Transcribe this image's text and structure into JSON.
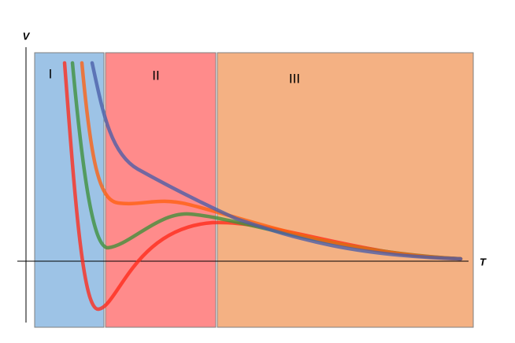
{
  "axes": {
    "y_label": "V",
    "x_label": "T"
  },
  "regions": [
    "I",
    "II",
    "III"
  ]
}
